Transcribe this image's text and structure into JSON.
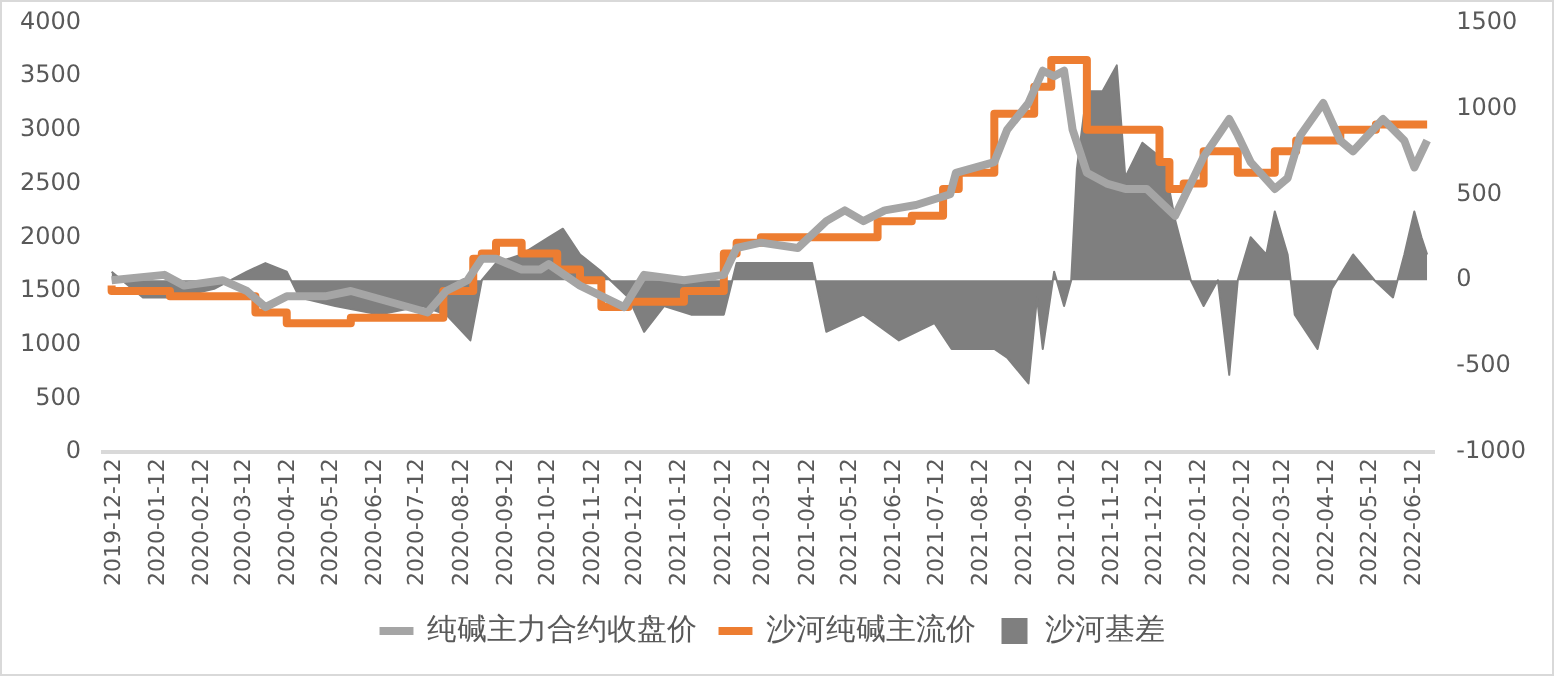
{
  "chart_data": {
    "type": "line",
    "xlim": [
      "2019-12-04",
      "2022-06-26"
    ],
    "xticks": [
      "2019-12-12",
      "2020-01-12",
      "2020-02-12",
      "2020-03-12",
      "2020-04-12",
      "2020-05-12",
      "2020-06-12",
      "2020-07-12",
      "2020-08-12",
      "2020-09-12",
      "2020-10-12",
      "2020-11-12",
      "2020-12-12",
      "2021-01-12",
      "2021-02-12",
      "2021-03-12",
      "2021-04-12",
      "2021-05-12",
      "2021-06-12",
      "2021-07-12",
      "2021-08-12",
      "2021-09-12",
      "2021-10-12",
      "2021-11-12",
      "2021-12-12",
      "2022-01-12",
      "2022-02-12",
      "2022-03-12",
      "2022-04-12",
      "2022-05-12",
      "2022-06-12"
    ],
    "ylim": [
      0,
      4000
    ],
    "yticks": [
      0,
      500,
      1000,
      1500,
      2000,
      2500,
      3000,
      3500,
      4000
    ],
    "y2lim": [
      -1000,
      1500
    ],
    "y2ticks": [
      -1000,
      -500,
      0,
      500,
      1000,
      1500
    ],
    "legend": "bottom",
    "grid": false,
    "series": [
      {
        "name": "沙河基差",
        "type": "area",
        "axis": "y2",
        "color": "#7f7f7f",
        "x": [
          "2019-12-10",
          "2020-01-01",
          "2020-01-25",
          "2020-02-20",
          "2020-03-14",
          "2020-03-27",
          "2020-04-11",
          "2020-04-20",
          "2020-05-15",
          "2020-06-15",
          "2020-07-15",
          "2020-08-01",
          "2020-08-18",
          "2020-08-26",
          "2020-09-05",
          "2020-09-23",
          "2020-10-12",
          "2020-10-22",
          "2020-11-03",
          "2020-11-18",
          "2020-12-07",
          "2020-12-18",
          "2021-01-01",
          "2021-01-20",
          "2021-02-12",
          "2021-02-21",
          "2021-03-20",
          "2021-04-15",
          "2021-04-25",
          "2021-05-21",
          "2021-06-15",
          "2021-07-10",
          "2021-07-22",
          "2021-08-21",
          "2021-08-30",
          "2021-09-14",
          "2021-09-20",
          "2021-09-24",
          "2021-10-02",
          "2021-10-09",
          "2021-10-14",
          "2021-10-18",
          "2021-10-25",
          "2021-11-05",
          "2021-11-15",
          "2021-11-21",
          "2021-12-03",
          "2021-12-18",
          "2021-12-26",
          "2022-01-06",
          "2022-01-15",
          "2022-01-25",
          "2022-02-02",
          "2022-02-08",
          "2022-02-17",
          "2022-02-28",
          "2022-03-06",
          "2022-03-15",
          "2022-03-20",
          "2022-04-05",
          "2022-04-15",
          "2022-04-30",
          "2022-05-15",
          "2022-05-28",
          "2022-06-05",
          "2022-06-12",
          "2022-06-17",
          "2022-06-21"
        ],
        "values": [
          50,
          -100,
          -100,
          -50,
          50,
          100,
          50,
          -100,
          -150,
          -200,
          -150,
          -200,
          -350,
          0,
          100,
          150,
          250,
          300,
          150,
          50,
          -100,
          -300,
          -150,
          -200,
          -200,
          100,
          100,
          100,
          -300,
          -200,
          -350,
          -250,
          -400,
          -400,
          -450,
          -600,
          -100,
          -400,
          50,
          -150,
          0,
          650,
          1100,
          1100,
          1250,
          600,
          800,
          700,
          350,
          0,
          -150,
          0,
          -550,
          0,
          250,
          150,
          400,
          150,
          -200,
          -400,
          -50,
          150,
          0,
          -100,
          150,
          400,
          250,
          150
        ]
      },
      {
        "name": "沙河纯碱主流价",
        "type": "step",
        "color": "#ed7d31",
        "x": [
          "2019-12-10",
          "2020-01-20",
          "2020-03-20",
          "2020-04-11",
          "2020-05-08",
          "2020-05-26",
          "2020-07-30",
          "2020-08-20",
          "2020-08-26",
          "2020-09-05",
          "2020-09-23",
          "2020-10-18",
          "2020-11-03",
          "2020-11-18",
          "2020-12-07",
          "2021-01-15",
          "2021-02-12",
          "2021-02-21",
          "2021-03-10",
          "2021-05-31",
          "2021-06-24",
          "2021-07-16",
          "2021-07-27",
          "2021-08-21",
          "2021-09-18",
          "2021-09-30",
          "2021-10-25",
          "2021-11-30",
          "2021-12-15",
          "2021-12-22",
          "2022-01-01",
          "2022-01-15",
          "2022-02-08",
          "2022-03-06",
          "2022-03-21",
          "2022-04-21",
          "2022-05-16",
          "2022-06-21"
        ],
        "values": [
          1550,
          1500,
          1450,
          1300,
          1200,
          1200,
          1250,
          1500,
          1800,
          1850,
          1950,
          1850,
          1700,
          1600,
          1350,
          1400,
          1500,
          1850,
          1950,
          2000,
          2150,
          2200,
          2450,
          2600,
          3150,
          3400,
          3650,
          3000,
          3000,
          2700,
          2450,
          2500,
          2800,
          2600,
          2800,
          2900,
          3000,
          3050
        ]
      },
      {
        "name": "纯碱主力合约收盘价",
        "type": "line",
        "color": "#a5a5a5",
        "x": [
          "2019-12-10",
          "2020-01-16",
          "2020-01-30",
          "2020-02-26",
          "2020-03-14",
          "2020-03-27",
          "2020-04-11",
          "2020-05-08",
          "2020-05-26",
          "2020-06-22",
          "2020-07-19",
          "2020-08-01",
          "2020-08-16",
          "2020-08-26",
          "2020-09-05",
          "2020-09-23",
          "2020-10-06",
          "2020-10-12",
          "2020-11-03",
          "2020-12-04",
          "2020-12-18",
          "2021-01-15",
          "2021-02-12",
          "2021-02-21",
          "2021-03-10",
          "2021-04-05",
          "2021-04-25",
          "2021-05-08",
          "2021-05-21",
          "2021-06-05",
          "2021-06-27",
          "2021-07-21",
          "2021-07-25",
          "2021-08-21",
          "2021-08-30",
          "2021-09-14",
          "2021-09-24",
          "2021-10-02",
          "2021-10-09",
          "2021-10-15",
          "2021-10-25",
          "2021-11-08",
          "2021-11-21",
          "2021-12-06",
          "2021-12-18",
          "2021-12-26",
          "2022-01-06",
          "2022-01-15",
          "2022-02-02",
          "2022-02-08",
          "2022-02-17",
          "2022-03-06",
          "2022-03-15",
          "2022-03-24",
          "2022-04-09",
          "2022-04-21",
          "2022-04-30",
          "2022-05-21",
          "2022-06-05",
          "2022-06-12",
          "2022-06-21"
        ],
        "values": [
          1600,
          1650,
          1550,
          1600,
          1500,
          1350,
          1450,
          1450,
          1500,
          1400,
          1300,
          1500,
          1600,
          1800,
          1800,
          1700,
          1700,
          1750,
          1550,
          1350,
          1650,
          1600,
          1650,
          1900,
          1950,
          1900,
          2150,
          2250,
          2150,
          2250,
          2300,
          2400,
          2600,
          2700,
          3000,
          3250,
          3550,
          3500,
          3550,
          3000,
          2600,
          2500,
          2450,
          2450,
          2300,
          2200,
          2500,
          2750,
          3100,
          2950,
          2700,
          2450,
          2550,
          2950,
          3250,
          2900,
          2800,
          3100,
          2900,
          2650,
          2900
        ]
      }
    ]
  }
}
